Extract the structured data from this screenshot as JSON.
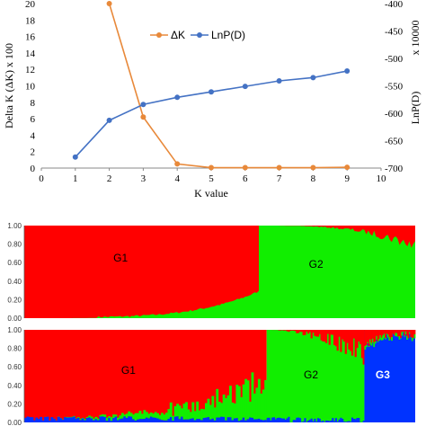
{
  "colors": {
    "deltaK": "#E8893A",
    "lnpd": "#4472C4",
    "red": "#FF0000",
    "green": "#11EE00",
    "blue": "#0033FF"
  },
  "chart_data": [
    {
      "type": "line",
      "xlabel": "K value",
      "ylabel_left": "Delta K (ΔK)   x 100",
      "ylabel_right": "LnP(D)",
      "right_scale_note": "x 10000",
      "x_ticks": [
        "0",
        "1",
        "2",
        "3",
        "4",
        "5",
        "6",
        "7",
        "8",
        "9",
        "10"
      ],
      "y_left_ticks": [
        "0",
        "2",
        "4",
        "6",
        "8",
        "10",
        "12",
        "14",
        "16",
        "18",
        "20"
      ],
      "y_right_ticks": [
        "-700",
        "-650",
        "-600",
        "-550",
        "-500",
        "-450",
        "-400"
      ],
      "xlim": [
        0,
        10
      ],
      "ylim_left": [
        0,
        20
      ],
      "ylim_right": [
        -700,
        -400
      ],
      "series": [
        {
          "name": "ΔK",
          "axis": "left",
          "x": [
            2,
            3,
            4,
            5,
            6,
            7,
            8,
            9
          ],
          "values": [
            20,
            6.2,
            0.5,
            0.05,
            0.05,
            0.05,
            0.05,
            0.1
          ]
        },
        {
          "name": "LnP(D)",
          "axis": "right",
          "x": [
            1,
            2,
            3,
            4,
            5,
            6,
            7,
            8,
            9
          ],
          "values": [
            -680,
            -613,
            -584,
            -571,
            -561,
            -551,
            -541,
            -535,
            -523
          ]
        }
      ],
      "legend_position": "top-center"
    },
    {
      "type": "area",
      "description_k": 2,
      "y_ticks": [
        "0.00",
        "0.20",
        "0.40",
        "0.60",
        "0.80",
        "1.00"
      ],
      "groups": [
        "G1",
        "G2"
      ],
      "boundary_fraction": 0.6
    },
    {
      "type": "area",
      "description_k": 3,
      "y_ticks": [
        "0.00",
        "0.20",
        "0.40",
        "0.60",
        "0.80",
        "1.00"
      ],
      "groups": [
        "G1",
        "G2",
        "G3"
      ],
      "boundaries_fraction": [
        0.62,
        0.87
      ]
    }
  ]
}
